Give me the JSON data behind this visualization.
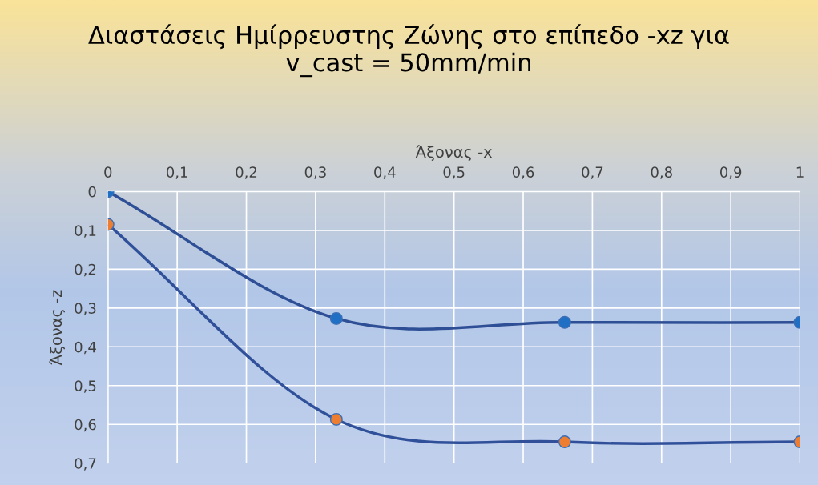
{
  "chart_data": {
    "type": "line",
    "title": "Διαστάσεις Ημίρρευστης Ζώνης στο επίπεδο -xz για\nv_cast = 50mm/min",
    "xlabel": "Άξονας -x",
    "ylabel": "Άξονας -z",
    "x": [
      0,
      0.33,
      0.66,
      1
    ],
    "series": [
      {
        "color": "#2e4f96",
        "colors": [
          "#1f6fc5",
          "#1f6fc5",
          "#1f6fc5",
          "#1f6fc5"
        ],
        "values": [
          0,
          0.327,
          0.337,
          0.337
        ]
      },
      {
        "color": "#30519a",
        "colors": [
          "#ed7d31",
          "#ed7d31",
          "#ed7d31",
          "#ed7d31"
        ],
        "values": [
          0.085,
          0.587,
          0.645,
          0.645
        ]
      }
    ],
    "xlim": [
      0,
      1
    ],
    "ylim": [
      0.7,
      0
    ],
    "xticks": [
      0,
      {
        "value": 0.1,
        "label": "0,1"
      },
      {
        "value": 0.2,
        "label": "0,2"
      },
      {
        "value": 0.3,
        "label": "0,3"
      },
      {
        "value": 0.4,
        "label": "0,4"
      },
      {
        "value": 0.5,
        "label": "0,5"
      },
      {
        "value": 0.6,
        "label": "0,6"
      },
      {
        "value": 0.7,
        "label": "0,7"
      },
      {
        "value": 0.8,
        "label": "0,8"
      },
      {
        "value": 0.9,
        "label": "0,9"
      },
      1
    ],
    "yticks": [
      0,
      {
        "value": 0.1,
        "label": "0,1"
      },
      {
        "value": 0.2,
        "label": "0,2"
      },
      {
        "value": 0.3,
        "label": "0,3"
      },
      {
        "value": 0.4,
        "label": "0,4"
      },
      {
        "value": 0.5,
        "label": "0,5"
      },
      {
        "value": 0.6,
        "label": "0,6"
      },
      {
        "value": 0.7,
        "label": "0,7"
      }
    ],
    "grid": true,
    "marker": "circle",
    "line_style": "solid"
  }
}
